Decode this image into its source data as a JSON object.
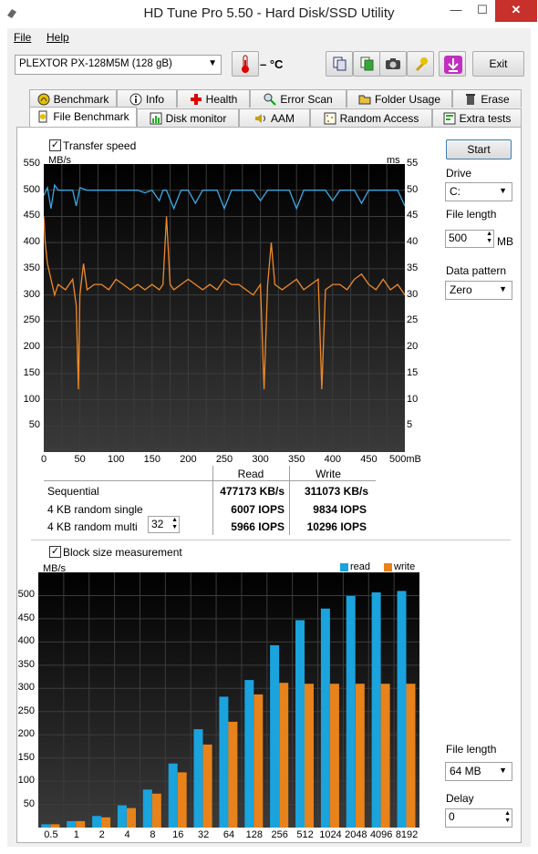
{
  "window": {
    "title": "HD Tune Pro 5.50 - Hard Disk/SSD Utility",
    "close": "✕",
    "minimize": "—",
    "maximize": "☐"
  },
  "menu": [
    {
      "label": "File",
      "key": "F"
    },
    {
      "label": "Help",
      "key": "H"
    }
  ],
  "toolbar": {
    "drive": "PLEXTOR PX-128M5M (128 gB)",
    "temperature": "– °C",
    "exit_label": "Exit"
  },
  "tabs_row1": [
    "Benchmark",
    "Info",
    "Health",
    "Error Scan",
    "Folder Usage",
    "Erase"
  ],
  "tabs_row2": [
    "File Benchmark",
    "Disk monitor",
    "AAM",
    "Random Access",
    "Extra tests"
  ],
  "transfer": {
    "checkbox_label": "Transfer speed",
    "checked": true,
    "y_unit": "MB/s",
    "y2_unit": "ms",
    "y_ticks": [
      "550",
      "500",
      "450",
      "400",
      "350",
      "300",
      "250",
      "200",
      "150",
      "100",
      "50"
    ],
    "y2_ticks": [
      "55",
      "50",
      "45",
      "40",
      "35",
      "30",
      "25",
      "20",
      "15",
      "10",
      "5"
    ],
    "x_ticks": [
      "0",
      "50",
      "100",
      "150",
      "200",
      "250",
      "300",
      "350",
      "400",
      "450",
      "500mB"
    ]
  },
  "results": {
    "col_read": "Read",
    "col_write": "Write",
    "rows": [
      {
        "label": "Sequential",
        "read": "477173 KB/s",
        "write": "311073 KB/s"
      },
      {
        "label": "4 KB random single",
        "read": "6007 IOPS",
        "write": "9834 IOPS"
      },
      {
        "label": "4 KB random multi",
        "read": "5966 IOPS",
        "write": "10296 IOPS"
      }
    ],
    "queue_depth": "32"
  },
  "side": {
    "start": "Start",
    "drive_label": "Drive",
    "drive_value": "C:",
    "file_length_label": "File length",
    "file_length_value": "500",
    "file_length_unit": "MB",
    "pattern_label": "Data pattern",
    "pattern_value": "Zero",
    "fl2_label": "File length",
    "fl2_value": "64 MB",
    "delay_label": "Delay",
    "delay_value": "0"
  },
  "block": {
    "checkbox_label": "Block size measurement",
    "checked": true,
    "y_unit": "MB/s",
    "legend_read": "read",
    "legend_write": "write",
    "color_read": "#1aa3dd",
    "color_write": "#e8821a"
  },
  "chart_data": [
    {
      "type": "line",
      "title": "Transfer speed",
      "xlabel": "",
      "ylabel": "MB/s",
      "y2label": "ms",
      "xlim": [
        0,
        500
      ],
      "ylim": [
        0,
        550
      ],
      "y2lim": [
        0,
        55
      ],
      "x_unit": "mB",
      "grid": true,
      "series": [
        {
          "name": "",
          "color": "#3aa7e0",
          "axis": "left",
          "x": [
            0,
            5,
            10,
            15,
            20,
            30,
            40,
            45,
            50,
            60,
            70,
            80,
            90,
            100,
            110,
            120,
            130,
            140,
            150,
            160,
            165,
            170,
            180,
            190,
            200,
            210,
            220,
            230,
            240,
            250,
            260,
            270,
            280,
            290,
            300,
            310,
            320,
            330,
            340,
            350,
            360,
            370,
            380,
            390,
            400,
            410,
            420,
            430,
            440,
            450,
            460,
            470,
            480,
            490,
            500
          ],
          "y": [
            490,
            505,
            465,
            510,
            500,
            500,
            500,
            470,
            505,
            500,
            500,
            500,
            500,
            500,
            500,
            500,
            500,
            495,
            500,
            480,
            500,
            500,
            465,
            500,
            500,
            475,
            500,
            500,
            500,
            465,
            500,
            500,
            500,
            500,
            480,
            500,
            500,
            500,
            500,
            465,
            500,
            500,
            500,
            500,
            480,
            500,
            500,
            500,
            475,
            500,
            500,
            500,
            500,
            500,
            470
          ]
        },
        {
          "name": "",
          "color": "#ee8a2a",
          "axis": "right",
          "x": [
            0,
            2,
            5,
            10,
            15,
            20,
            30,
            40,
            45,
            48,
            50,
            55,
            60,
            70,
            80,
            90,
            100,
            110,
            120,
            130,
            140,
            150,
            160,
            165,
            170,
            175,
            180,
            190,
            200,
            210,
            220,
            230,
            240,
            250,
            260,
            270,
            280,
            290,
            300,
            305,
            310,
            315,
            320,
            330,
            340,
            350,
            360,
            370,
            380,
            385,
            390,
            400,
            410,
            420,
            430,
            440,
            450,
            460,
            470,
            480,
            490,
            500
          ],
          "y": [
            45,
            40,
            36,
            33,
            30,
            32,
            31,
            33,
            28,
            12,
            30,
            36,
            31,
            32,
            32,
            31,
            33,
            32,
            31,
            32,
            31,
            32,
            31,
            32,
            45,
            32,
            31,
            32,
            33,
            32,
            31,
            32,
            31,
            33,
            32,
            32,
            31,
            30,
            32,
            12,
            32,
            40,
            32,
            31,
            32,
            33,
            31,
            32,
            33,
            12,
            31,
            32,
            32,
            31,
            33,
            34,
            32,
            31,
            33,
            31,
            32,
            30
          ]
        }
      ]
    },
    {
      "type": "bar",
      "title": "Block size measurement",
      "xlabel": "",
      "ylabel": "MB/s",
      "ylim": [
        0,
        550
      ],
      "grid": true,
      "legend": "top-right",
      "categories": [
        "0.5",
        "1",
        "2",
        "4",
        "8",
        "16",
        "32",
        "64",
        "128",
        "256",
        "512",
        "1024",
        "2048",
        "4096",
        "8192"
      ],
      "series": [
        {
          "name": "read",
          "color": "#1aa3dd",
          "values": [
            7,
            14,
            25,
            48,
            82,
            138,
            212,
            282,
            318,
            393,
            447,
            472,
            499,
            507,
            510
          ]
        },
        {
          "name": "write",
          "color": "#e8821a",
          "values": [
            7,
            14,
            22,
            42,
            73,
            119,
            179,
            228,
            287,
            312,
            310,
            310,
            310,
            310,
            310
          ]
        }
      ]
    }
  ]
}
